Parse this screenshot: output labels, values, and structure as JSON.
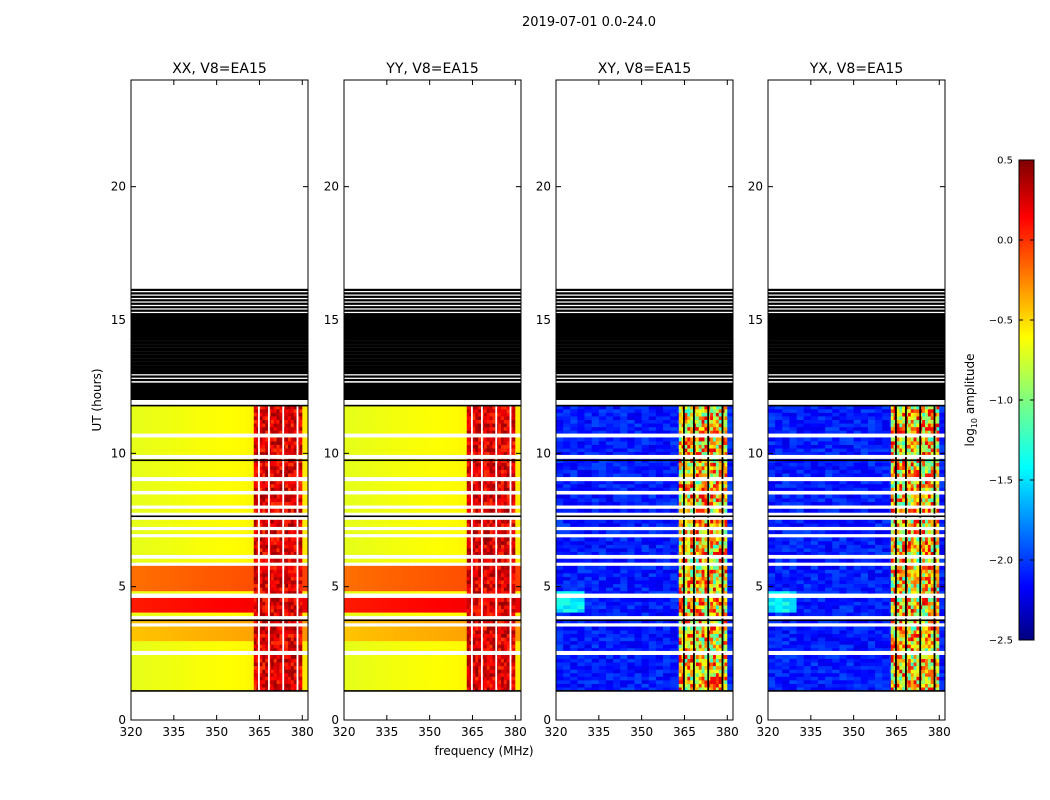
{
  "suptitle": "2019-07-01 0.0-24.0",
  "chart_data": {
    "type": "heatmap",
    "suptitle": "2019-07-01 0.0-24.0",
    "xlabel": "frequency (MHz)",
    "ylabel": "UT (hours)",
    "xlim": [
      320,
      382
    ],
    "ylim": [
      0,
      24
    ],
    "xticks": [
      320,
      335,
      350,
      365,
      380
    ],
    "yticks": [
      0,
      5,
      10,
      15,
      20
    ],
    "data_time_range_hours": [
      1.1,
      11.8
    ],
    "flagged_band_hours": [
      12.0,
      16.2
    ],
    "rfi_band_mhz": [
      363,
      380
    ],
    "rfi_channels_mhz": [
      364.5,
      368.0,
      373.0,
      378.0
    ],
    "gap_hours": [
      2.55,
      3.55,
      3.85,
      4.7,
      5.85,
      6.15,
      6.9,
      7.2,
      7.55,
      7.7,
      8.0,
      8.55,
      9.0,
      9.9,
      10.7
    ],
    "panels": [
      {
        "title": "XX, V8=EA15",
        "pol": "XX",
        "kind": "parallel"
      },
      {
        "title": "YY, V8=EA15",
        "pol": "YY",
        "kind": "parallel"
      },
      {
        "title": "XY, V8=EA15",
        "pol": "XY",
        "kind": "cross"
      },
      {
        "title": "YX, V8=EA15",
        "pol": "YX",
        "kind": "cross"
      }
    ],
    "colorbar": {
      "label_main": "log",
      "label_sub": "10",
      "label_rest": " amplitude",
      "range": [
        -2.5,
        0.5
      ],
      "ticks": [
        0.5,
        0.0,
        -0.5,
        -1.0,
        -1.5,
        -2.0,
        -2.5
      ],
      "tick_labels": [
        "0.5",
        "0.0",
        "−0.5",
        "−1.0",
        "−1.5",
        "−2.0",
        "−2.5"
      ],
      "colormap": "jet"
    }
  }
}
